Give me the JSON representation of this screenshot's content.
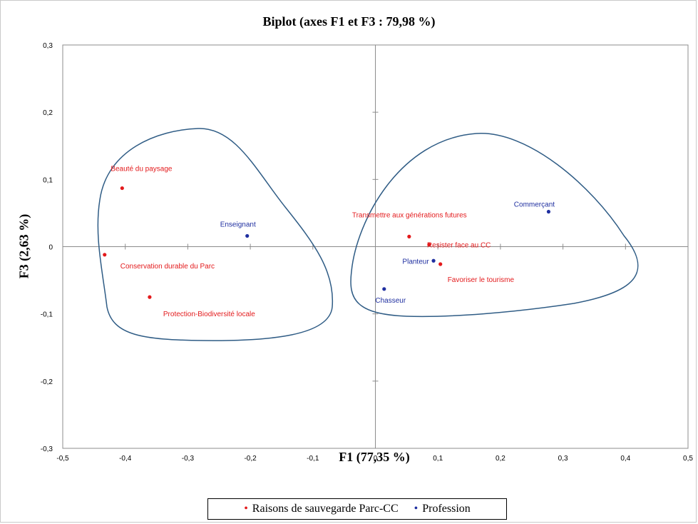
{
  "chart_data": {
    "type": "scatter",
    "title": "Biplot (axes F1 et F3 : 79,98 %)",
    "xlabel": "F1 (77,35 %)",
    "ylabel": "F3 (2,63 %)",
    "xlim": [
      -0.5,
      0.5
    ],
    "ylim": [
      -0.3,
      0.3
    ],
    "x_ticks": [
      "-0,5",
      "-0,4",
      "-0,3",
      "-0,2",
      "-0,1",
      "0",
      "0,1",
      "0,2",
      "0,3",
      "0,4",
      "0,5"
    ],
    "y_ticks": [
      "-0,3",
      "-0,2",
      "-0,1",
      "0",
      "0,1",
      "0,2",
      "0,3"
    ],
    "grid": false,
    "legend_position": "bottom",
    "series": [
      {
        "name": "Raisons de sauvegarde Parc-CC",
        "color": "#e31a1c",
        "points": [
          {
            "label": "Beauté du paysage",
            "x": -0.405,
            "y": 0.087
          },
          {
            "label": "Conservation durable du Parc",
            "x": -0.433,
            "y": -0.012
          },
          {
            "label": "Protection-Biodiversité locale",
            "x": -0.361,
            "y": -0.075
          },
          {
            "label": "Transmettre aux générations futures",
            "x": 0.054,
            "y": 0.015
          },
          {
            "label": "Resister face au CC",
            "x": 0.086,
            "y": 0.003
          },
          {
            "label": "Favoriser le tourisme",
            "x": 0.104,
            "y": -0.026
          }
        ]
      },
      {
        "name": "Profession",
        "color": "#1f2fa0",
        "points": [
          {
            "label": "Enseignant",
            "x": -0.205,
            "y": 0.016
          },
          {
            "label": "Commerçant",
            "x": 0.277,
            "y": 0.052
          },
          {
            "label": "Planteur",
            "x": 0.093,
            "y": -0.021
          },
          {
            "label": "Chasseur",
            "x": 0.014,
            "y": -0.063
          }
        ]
      }
    ],
    "legend": [
      {
        "marker": "•",
        "label": "Raisons de sauvegarde Parc-CC",
        "color": "#e31a1c"
      },
      {
        "marker": "•",
        "label": "Profession",
        "color": "#1f2fa0"
      }
    ]
  }
}
